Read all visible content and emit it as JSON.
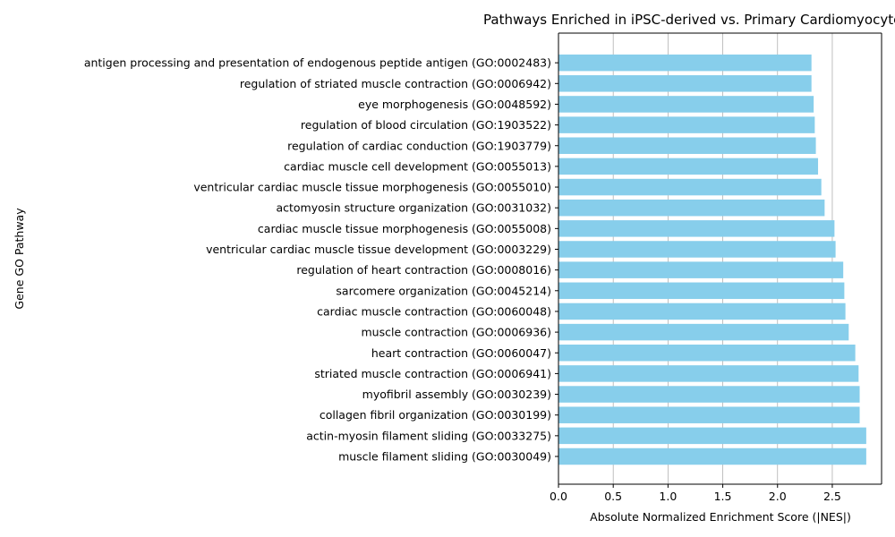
{
  "chart_data": {
    "type": "bar",
    "orientation": "horizontal",
    "title": "Pathways Enriched in iPSC-derived vs. Primary Cardiomyocytes",
    "xlabel": "Absolute Normalized Enrichment Score (|NES|)",
    "ylabel": "Gene GO Pathway",
    "xlim": [
      0,
      2.95
    ],
    "xticks": [
      "0.0",
      "0.5",
      "1.0",
      "1.5",
      "2.0",
      "2.5"
    ],
    "grid": "x",
    "bar_color": "#87CEEB",
    "grid_color": "#b0b0b0",
    "categories": [
      "muscle filament sliding (GO:0030049)",
      "actin-myosin filament sliding (GO:0033275)",
      "collagen fibril organization (GO:0030199)",
      "myofibril assembly (GO:0030239)",
      "striated muscle contraction (GO:0006941)",
      "heart contraction (GO:0060047)",
      "muscle contraction (GO:0006936)",
      "cardiac muscle contraction (GO:0060048)",
      "sarcomere organization (GO:0045214)",
      "regulation of heart contraction (GO:0008016)",
      "ventricular cardiac muscle tissue development (GO:0003229)",
      "cardiac muscle tissue morphogenesis (GO:0055008)",
      "actomyosin structure organization (GO:0031032)",
      "ventricular cardiac muscle tissue morphogenesis (GO:0055010)",
      "cardiac muscle cell development (GO:0055013)",
      "regulation of cardiac conduction (GO:1903779)",
      "regulation of blood circulation (GO:1903522)",
      "eye morphogenesis (GO:0048592)",
      "regulation of striated muscle contraction (GO:0006942)",
      "antigen processing and presentation of endogenous peptide antigen (GO:0002483)"
    ],
    "values": [
      2.81,
      2.81,
      2.75,
      2.75,
      2.74,
      2.71,
      2.65,
      2.62,
      2.61,
      2.6,
      2.53,
      2.52,
      2.43,
      2.4,
      2.37,
      2.35,
      2.34,
      2.33,
      2.31,
      2.31
    ]
  }
}
